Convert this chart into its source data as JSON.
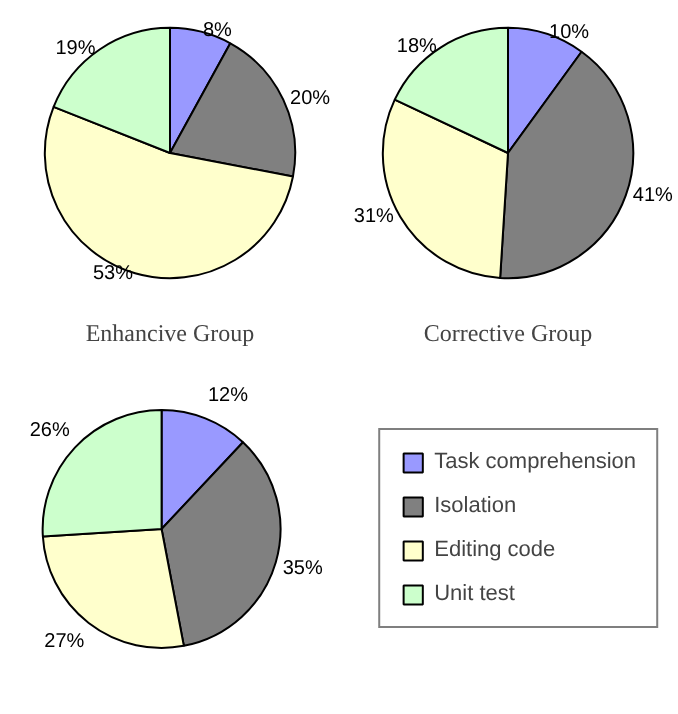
{
  "chart_data": [
    {
      "type": "pie",
      "title": "Enhancive Group",
      "values": [
        8,
        20,
        53,
        19
      ],
      "value_labels": [
        "8%",
        "20%",
        "53%",
        "19%"
      ],
      "colors": [
        "#9999ff",
        "#808080",
        "#ffffcc",
        "#ccffcc"
      ]
    },
    {
      "type": "pie",
      "title": "Corrective Group",
      "values": [
        10,
        41,
        31,
        18
      ],
      "value_labels": [
        "10%",
        "41%",
        "31%",
        "18%"
      ],
      "colors": [
        "#9999ff",
        "#808080",
        "#ffffcc",
        "#ccffcc"
      ]
    },
    {
      "type": "pie",
      "categories": [
        "Task comprehension",
        "Isolation",
        "Editing code",
        "Unit test"
      ],
      "values": [
        12,
        35,
        27,
        26
      ],
      "value_labels": [
        "12%",
        "35%",
        "27%",
        "26%"
      ],
      "colors": [
        "#9999ff",
        "#808080",
        "#ffffcc",
        "#ccffcc"
      ],
      "legend": "right"
    }
  ]
}
